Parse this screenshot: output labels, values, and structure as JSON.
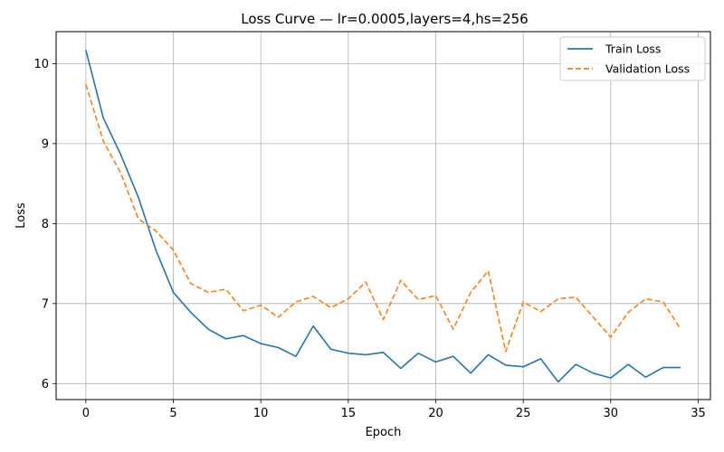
{
  "chart_data": {
    "type": "line",
    "title": "Loss Curve — lr=0.0005,layers=4,hs=256",
    "xlabel": "Epoch",
    "ylabel": "Loss",
    "xlim": [
      -1.7,
      35.7
    ],
    "ylim": [
      5.8,
      10.4
    ],
    "xticks": [
      0,
      5,
      10,
      15,
      20,
      25,
      30,
      35
    ],
    "yticks": [
      6,
      7,
      8,
      9,
      10
    ],
    "grid": true,
    "legend_position": "top-right",
    "x": [
      0,
      1,
      2,
      3,
      4,
      5,
      6,
      7,
      8,
      9,
      10,
      11,
      12,
      13,
      14,
      15,
      16,
      17,
      18,
      19,
      20,
      21,
      22,
      23,
      24,
      25,
      26,
      27,
      28,
      29,
      30,
      31,
      32,
      33,
      34
    ],
    "series": [
      {
        "name": "Train Loss",
        "color": "#1f77b4",
        "style": "solid",
        "values": [
          10.17,
          9.32,
          8.86,
          8.33,
          7.67,
          7.14,
          6.89,
          6.68,
          6.56,
          6.6,
          6.5,
          6.45,
          6.34,
          6.72,
          6.43,
          6.38,
          6.36,
          6.39,
          6.19,
          6.38,
          6.27,
          6.34,
          6.13,
          6.36,
          6.23,
          6.21,
          6.31,
          6.02,
          6.24,
          6.13,
          6.07,
          6.24,
          6.08,
          6.2,
          6.2
        ]
      },
      {
        "name": "Validation Loss",
        "color": "#ff7f0e",
        "style": "dashed",
        "values": [
          9.74,
          9.03,
          8.63,
          8.06,
          7.91,
          7.67,
          7.25,
          7.14,
          7.18,
          6.91,
          6.98,
          6.83,
          7.02,
          7.09,
          6.95,
          7.06,
          7.27,
          6.8,
          7.29,
          7.05,
          7.1,
          6.68,
          7.14,
          7.41,
          6.4,
          7.02,
          6.9,
          7.06,
          7.08,
          6.83,
          6.58,
          6.89,
          7.06,
          7.02,
          6.68
        ]
      }
    ]
  }
}
